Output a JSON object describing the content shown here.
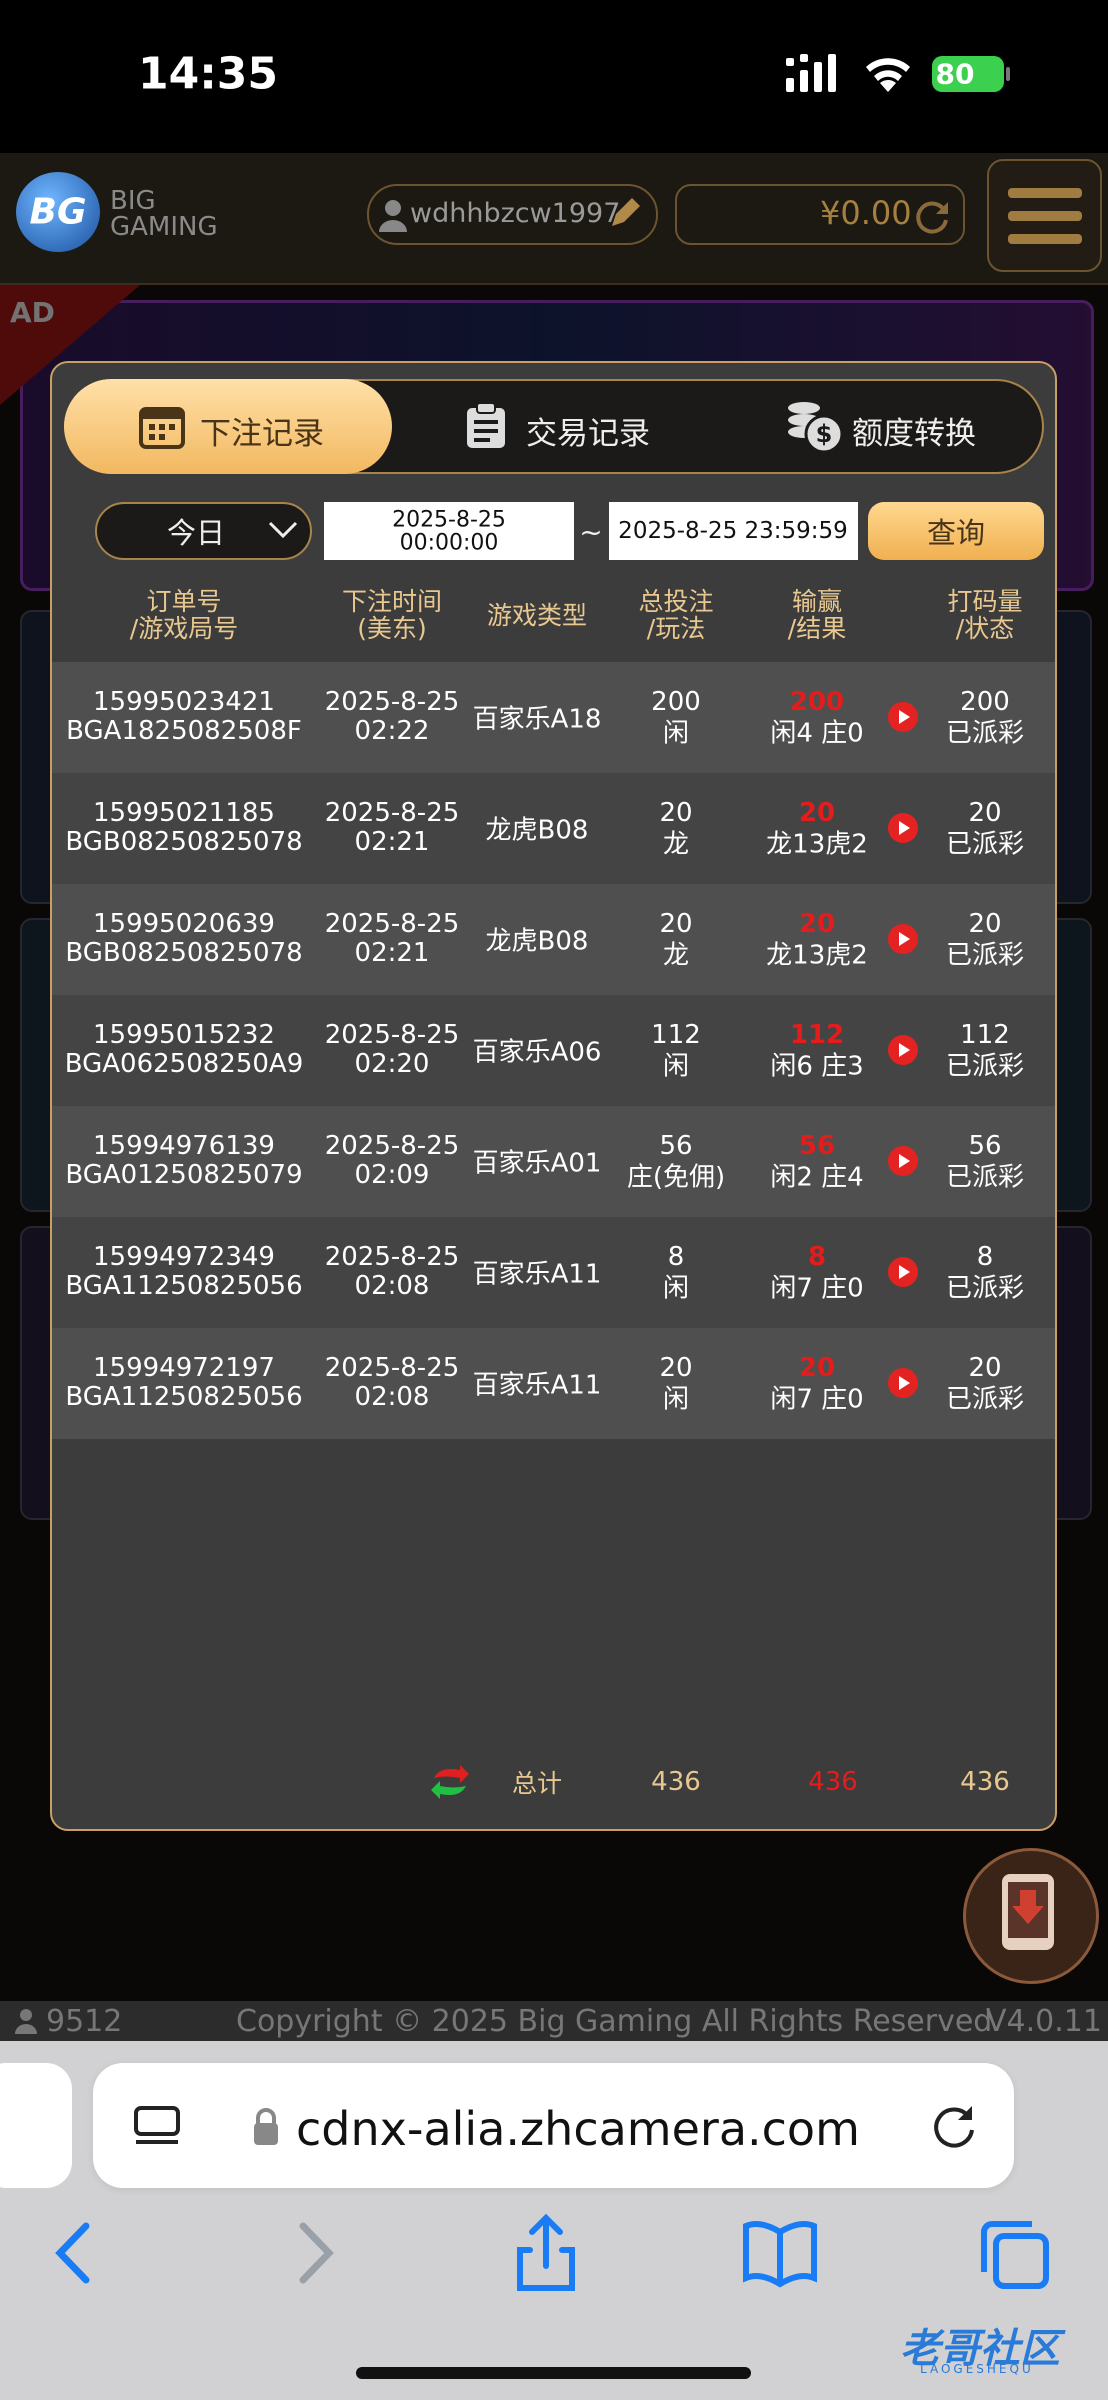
{
  "status_bar": {
    "time": "14:35",
    "battery": "80"
  },
  "header": {
    "logo": "BG",
    "brand_top": "BIG",
    "brand_bottom": "GAMING",
    "username": "wdhhbzcw1997",
    "balance": "¥0.00"
  },
  "ad_tag": "AD",
  "tabs": [
    "下注记录",
    "交易记录",
    "额度转换"
  ],
  "filter": {
    "period": "今日",
    "start_date": "2025-8-25",
    "start_time": "00:00:00",
    "separator": "~",
    "end": "2025-8-25 23:59:59",
    "button": "查询"
  },
  "table": {
    "headers": [
      [
        "订单号",
        "/游戏局号"
      ],
      [
        "下注时间",
        "(美东)"
      ],
      [
        "游戏类型"
      ],
      [
        "总投注",
        "/玩法"
      ],
      [
        "输赢",
        "/结果"
      ],
      [
        "打码量",
        "/状态"
      ]
    ],
    "rows": [
      {
        "order": "15995023421",
        "round": "BGA1825082508F",
        "date": "2025-8-25",
        "time": "02:22",
        "game": "百家乐A18",
        "bet": 200,
        "play": "闲",
        "win": 200,
        "result": "闲4 庄0",
        "valid": 200,
        "status": "已派彩"
      },
      {
        "order": "15995021185",
        "round": "BGB08250825078",
        "date": "2025-8-25",
        "time": "02:21",
        "game": "龙虎B08",
        "bet": 20,
        "play": "龙",
        "win": 20,
        "result": "龙13虎2",
        "valid": 20,
        "status": "已派彩"
      },
      {
        "order": "15995020639",
        "round": "BGB08250825078",
        "date": "2025-8-25",
        "time": "02:21",
        "game": "龙虎B08",
        "bet": 20,
        "play": "龙",
        "win": 20,
        "result": "龙13虎2",
        "valid": 20,
        "status": "已派彩"
      },
      {
        "order": "15995015232",
        "round": "BGA062508250A9",
        "date": "2025-8-25",
        "time": "02:20",
        "game": "百家乐A06",
        "bet": 112,
        "play": "闲",
        "win": 112,
        "result": "闲6 庄3",
        "valid": 112,
        "status": "已派彩"
      },
      {
        "order": "15994976139",
        "round": "BGA01250825079",
        "date": "2025-8-25",
        "time": "02:09",
        "game": "百家乐A01",
        "bet": 56,
        "play": "庄(免佣)",
        "win": 56,
        "result": "闲2 庄4",
        "valid": 56,
        "status": "已派彩"
      },
      {
        "order": "15994972349",
        "round": "BGA11250825056",
        "date": "2025-8-25",
        "time": "02:08",
        "game": "百家乐A11",
        "bet": 8,
        "play": "闲",
        "win": 8,
        "result": "闲7 庄0",
        "valid": 8,
        "status": "已派彩"
      },
      {
        "order": "15994972197",
        "round": "BGA11250825056",
        "date": "2025-8-25",
        "time": "02:08",
        "game": "百家乐A11",
        "bet": 20,
        "play": "闲",
        "win": 20,
        "result": "闲7 庄0",
        "valid": 20,
        "status": "已派彩"
      }
    ],
    "total": {
      "label": "总计",
      "bet": 436,
      "win": 436,
      "valid": 436
    }
  },
  "footer": {
    "online": "9512",
    "copyright": "Copyright © 2025 Big Gaming All Rights Reserved",
    "version": "V4.0.11"
  },
  "browser": {
    "url": "cdnx-alia.zhcamera.com"
  },
  "watermark": {
    "title": "老哥社区",
    "subtitle": "LAOGESHEQU"
  }
}
